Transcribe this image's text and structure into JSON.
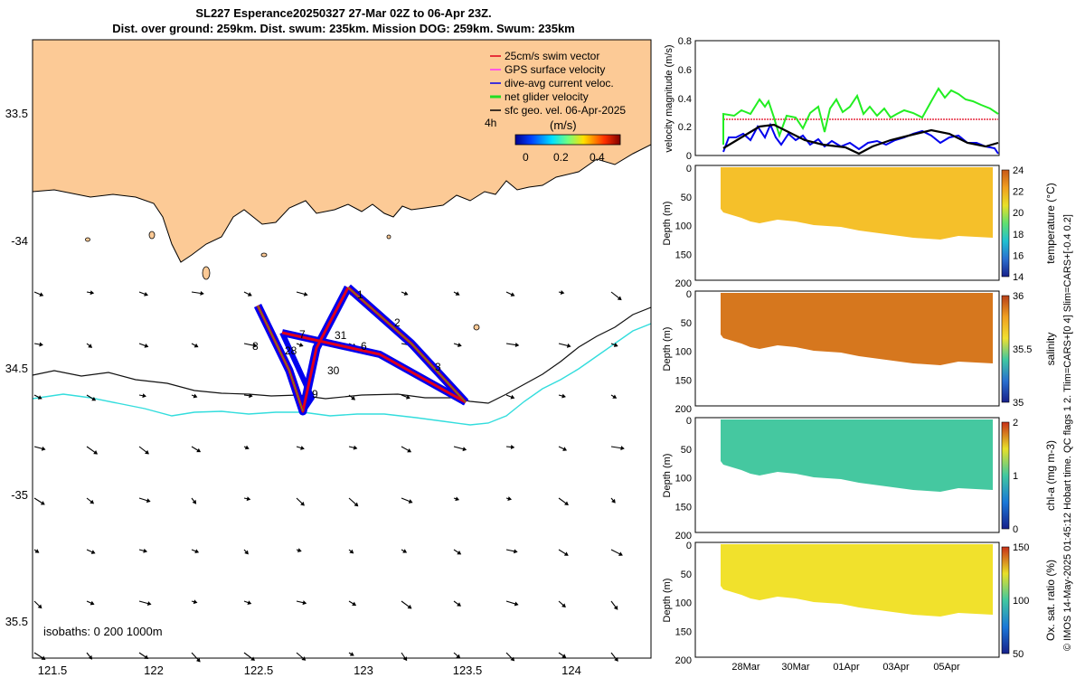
{
  "title": {
    "line1": "SL227 Esperance20250327 27-Mar 02Z to 06-Apr 23Z.",
    "line2": "Dist. over ground: 259km. Dist. swum: 235km. Mission DOG: 259km. Swum: 235km"
  },
  "map": {
    "lon_ticks": [
      "121.5",
      "122",
      "122.5",
      "123",
      "123.5",
      "124"
    ],
    "lat_ticks": [
      "33.5",
      "-34",
      "34.5",
      "-35",
      "35.5"
    ],
    "legend": [
      {
        "label": "25cm/s swim vector",
        "color": "#e0001a"
      },
      {
        "label": "GPS surface velocity",
        "color": "#ff33ff"
      },
      {
        "label": "dive-avg current veloc.",
        "color": "#0000ee"
      },
      {
        "label": "net glider velocity",
        "color": "#22dd22"
      },
      {
        "label": "sfc geo. vel. 06-Apr-2025",
        "color": "#000000"
      }
    ],
    "legend_extra": "4h",
    "colorbar_unit": "(m/s)",
    "colorbar_ticks": [
      "0",
      "0.2",
      "0.4"
    ],
    "track_day_labels": [
      "1",
      "2",
      "3",
      "6",
      "7",
      "31",
      "30",
      "28",
      "8",
      "9"
    ],
    "isobaths_label": "isobaths: 0   200  1000m",
    "colors": {
      "land": "#fcca96",
      "isobath_200": "#111111",
      "isobath_1000": "#33dddd"
    }
  },
  "velocity_panel": {
    "ylabel": "velocity magnitude (m/s)",
    "y_ticks": [
      "0",
      "0.2",
      "0.4",
      "0.6",
      "0.8"
    ]
  },
  "sections": [
    {
      "label": "temperature (°C)",
      "ticks": [
        "14",
        "16",
        "18",
        "20",
        "22",
        "24"
      ],
      "base_color": "#f5c02a"
    },
    {
      "label": "salinity",
      "ticks": [
        "35",
        "35.5",
        "36"
      ],
      "base_color": "#d6771e"
    },
    {
      "label": "chl-a (mg m-3)",
      "ticks": [
        "0",
        "1",
        "2"
      ],
      "base_color": "#45c8a0"
    },
    {
      "label": "Ox. sat. ratio (%)",
      "ticks": [
        "50",
        "100",
        "150"
      ],
      "base_color": "#f1e12c"
    }
  ],
  "depth_label": "Depth (m)",
  "depth_ticks": [
    "0",
    "50",
    "100",
    "150",
    "200"
  ],
  "time_ticks": [
    "28Mar",
    "30Mar",
    "01Apr",
    "03Apr",
    "05Apr"
  ],
  "side_note": "© IMOS 14-May-2025 01:45:12 Hobart time. QC flags 1  2. Tlim=CARS+[0 4] Slim=CARS+[-0.4 0.2]"
}
